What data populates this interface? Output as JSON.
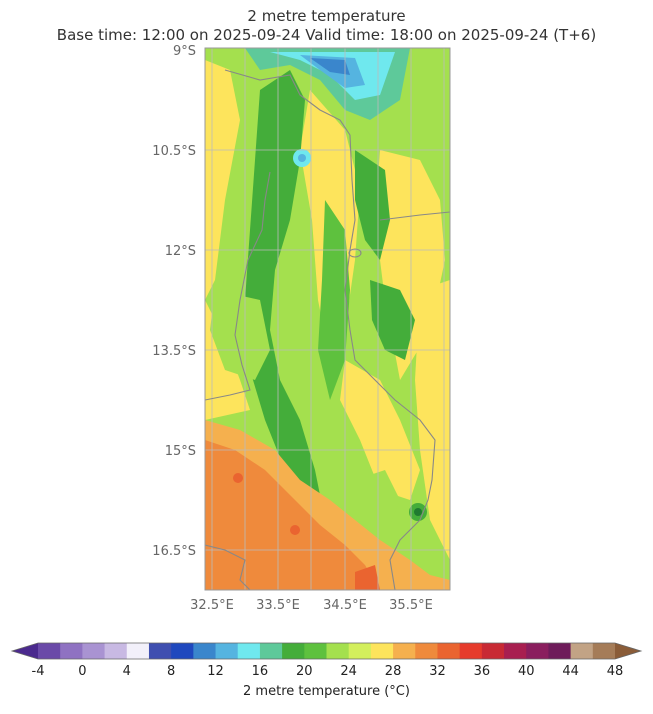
{
  "title": "2 metre temperature",
  "subtitle": "Base time: 12:00 on 2025-09-24   Valid time: 18:00 on 2025-09-24 (T+6)",
  "map": {
    "lat_labels": [
      "9°S",
      "10.5°S",
      "12°S",
      "13.5°S",
      "15°S",
      "16.5°S"
    ],
    "lon_labels": [
      "32.5°E",
      "33.5°E",
      "34.5°E",
      "35.5°E"
    ],
    "grid": true
  },
  "colorbar": {
    "label": "2 metre temperature (°C)",
    "tick_labels": [
      "-4",
      "0",
      "4",
      "8",
      "12",
      "16",
      "20",
      "24",
      "28",
      "32",
      "36",
      "40",
      "44",
      "48"
    ],
    "colors": [
      "#4b2a8e",
      "#6a4aa8",
      "#8f72c2",
      "#a993d2",
      "#c8b9e3",
      "#f2f0fa",
      "#3f4fb0",
      "#1f48be",
      "#3a86cc",
      "#55b4e0",
      "#6fe8ee",
      "#5ec99a",
      "#44ad3a",
      "#5ec13e",
      "#a4e04e",
      "#d3ef5c",
      "#fde45c",
      "#f5b04e",
      "#ef8a3c",
      "#ea6430",
      "#e63b2c",
      "#c82a34",
      "#a81f50",
      "#8a1e5e",
      "#6e1c5a",
      "#c2a385",
      "#a57c58",
      "#8a5c38"
    ]
  }
}
